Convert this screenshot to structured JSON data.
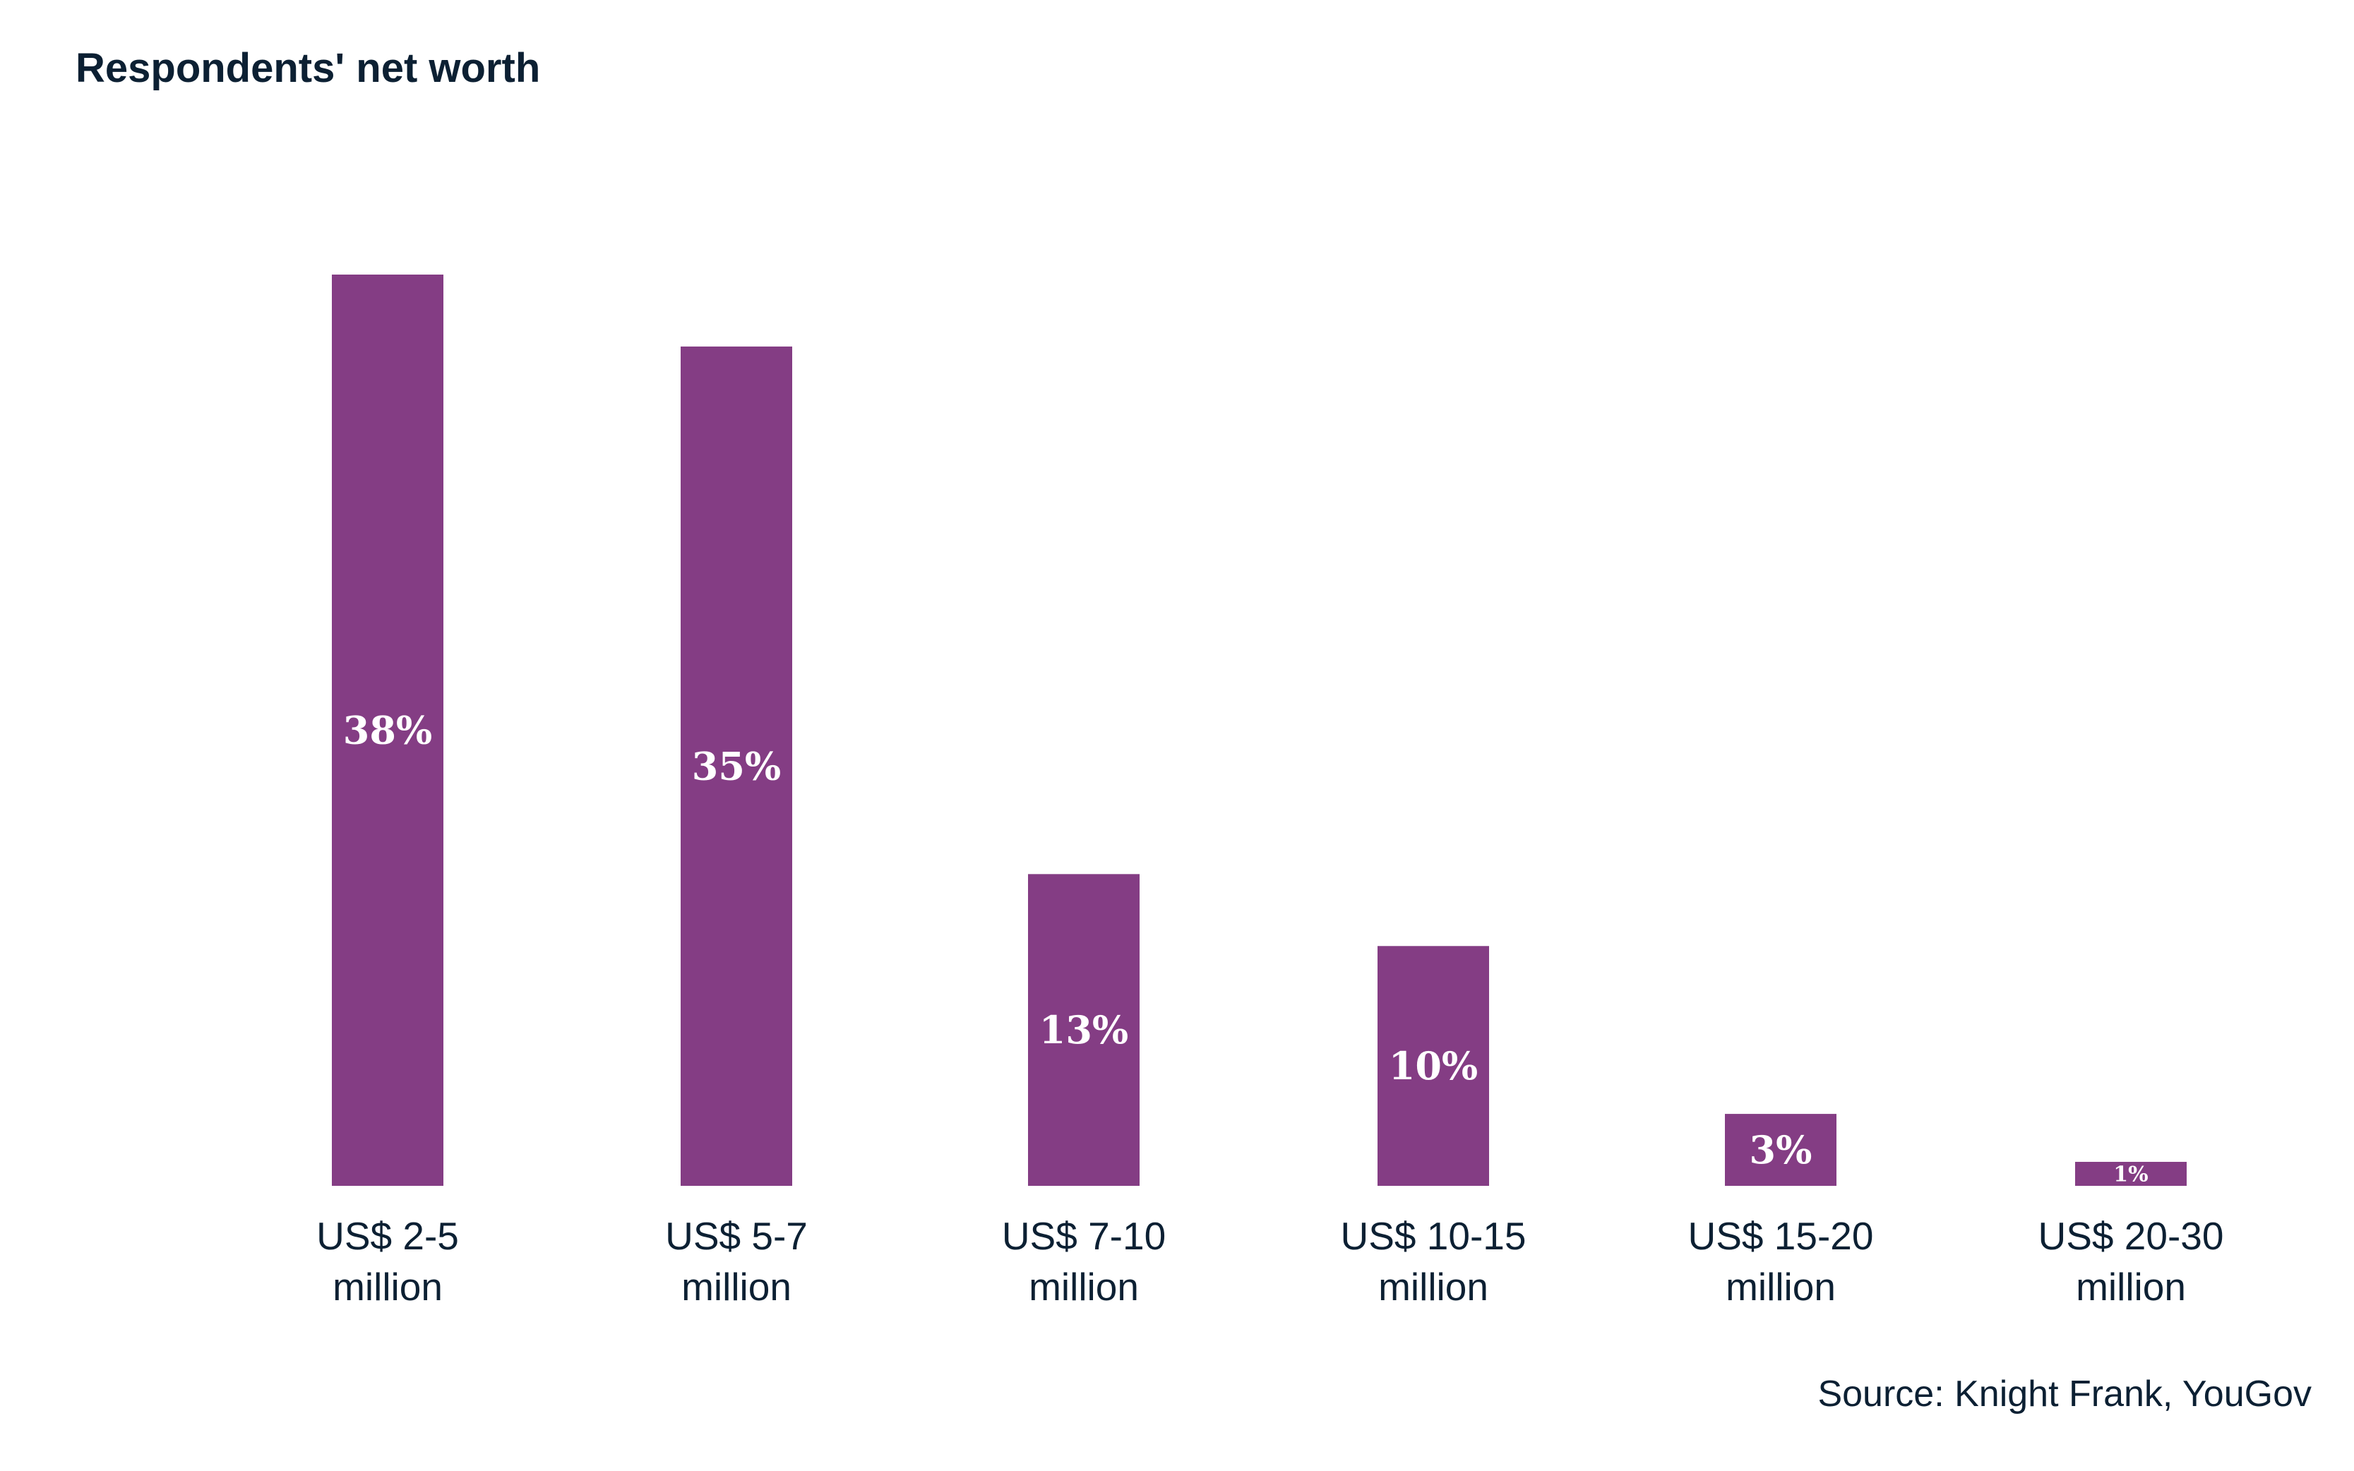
{
  "chart_data": {
    "type": "bar",
    "title": "Respondents' net worth",
    "categories": [
      [
        "US$ 2-5",
        "million"
      ],
      [
        "US$ 5-7",
        "million"
      ],
      [
        "US$ 7-10",
        "million"
      ],
      [
        "US$ 10-15",
        "million"
      ],
      [
        "US$ 15-20",
        "million"
      ],
      [
        "US$ 20-30",
        "million"
      ]
    ],
    "values": [
      38,
      35,
      13,
      10,
      3,
      1
    ],
    "value_labels": [
      "38%",
      "35%",
      "13%",
      "10%",
      "3%",
      "1%"
    ],
    "unit": "%",
    "xlabel": "",
    "ylabel": "",
    "ylim": [
      0,
      38
    ],
    "grid": false,
    "source": "Source: Knight Frank, YouGov",
    "colors": {
      "bar": "#843d84",
      "text": "#0c2033",
      "label": "#ffffff"
    }
  }
}
